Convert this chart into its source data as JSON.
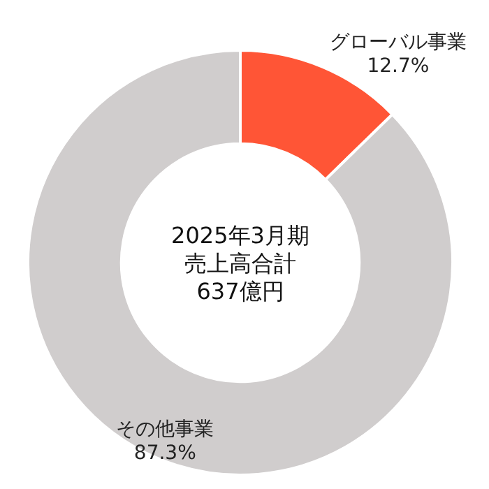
{
  "chart_data": {
    "type": "donut",
    "categories": [
      "グローバル事業",
      "その他事業"
    ],
    "values": [
      12.7,
      87.3
    ],
    "value_labels": [
      "12.7%",
      "87.3%"
    ],
    "colors": [
      "#ff5536",
      "#d0cdcd"
    ],
    "annotations": [
      "2025年3月期",
      "売上高合計",
      "637億円"
    ]
  }
}
